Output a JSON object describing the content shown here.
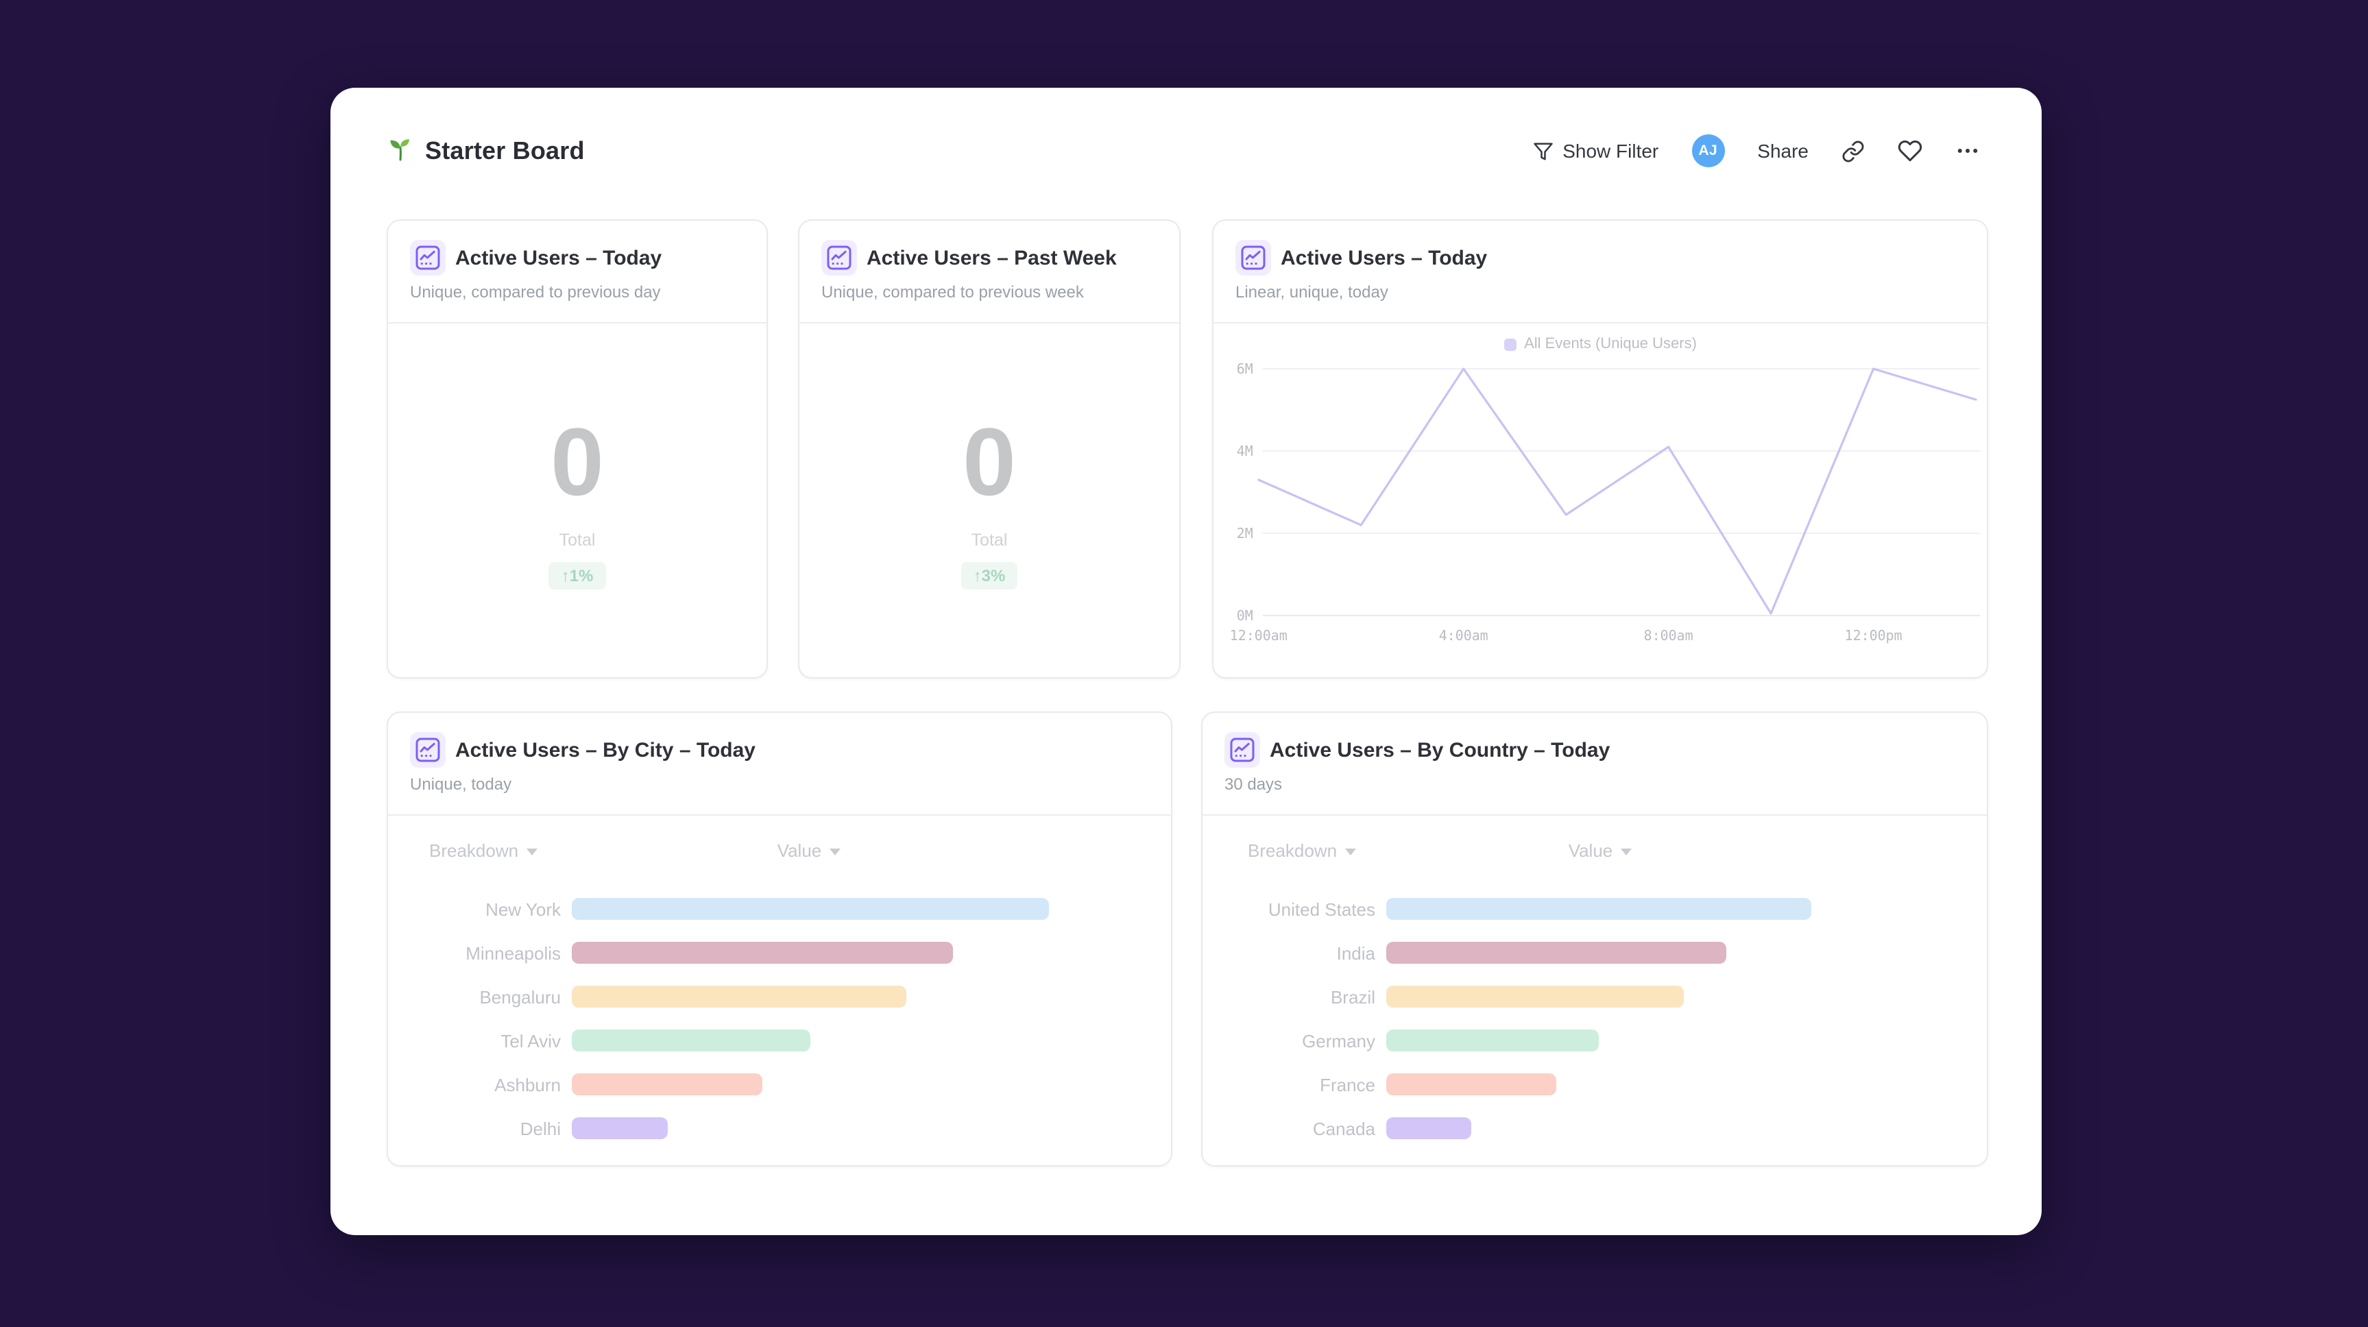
{
  "theme": {
    "page_bg": "#221340",
    "board_bg": "#ffffff",
    "accent_purple": "#7d5ef8",
    "icon_bg": "#f1edfe",
    "avatar_bg": "#58aaf6",
    "positive_green": "#a6d7c0",
    "positive_green_bg": "#eef7f2",
    "line_color": "#c9c1f3",
    "grid_color": "#f0f0f4"
  },
  "header": {
    "title": "Starter Board"
  },
  "toolbar": {
    "show_filter_label": "Show Filter",
    "avatar_initials": "AJ",
    "share_label": "Share",
    "icons": [
      "filter-icon",
      "link-icon",
      "heart-icon",
      "ellipsis-icon"
    ]
  },
  "cards": [
    {
      "title": "Active Users – Today",
      "subtitle": "Unique, compared to previous day",
      "type": "kpi",
      "value": "0",
      "value_label": "Total",
      "delta": "↑1%"
    },
    {
      "title": "Active Users – Past Week",
      "subtitle": "Unique, compared to previous week",
      "type": "kpi",
      "value": "0",
      "value_label": "Total",
      "delta": "↑3%"
    },
    {
      "title": "Active Users – Today",
      "subtitle": "Linear, unique, today",
      "type": "line",
      "chart_data": {
        "type": "line",
        "legend_label": "All Events (Unique Users)",
        "legend_position": "top",
        "x": [
          "12:00am",
          "2:00am",
          "4:00am",
          "6:00am",
          "8:00am",
          "10:00am",
          "12:00pm",
          "2:00pm"
        ],
        "x_tick_indices": [
          0,
          2,
          4,
          6
        ],
        "x_tick_labels": [
          "12:00am",
          "4:00am",
          "8:00am",
          "12:00pm"
        ],
        "values": [
          3300000,
          2200000,
          6000000,
          2450000,
          4100000,
          50000,
          6000000,
          5250000
        ],
        "y_ticks": [
          {
            "label": "0M",
            "value": 0
          },
          {
            "label": "2M",
            "value": 2000000
          },
          {
            "label": "4M",
            "value": 4000000
          },
          {
            "label": "6M",
            "value": 6000000
          }
        ],
        "ylim": [
          0,
          6000000
        ],
        "grid": true
      }
    },
    {
      "title": "Active Users – By City – Today",
      "subtitle": "Unique, today",
      "type": "breakdown",
      "columns": [
        "Breakdown",
        "Value"
      ],
      "chart_data": {
        "type": "bar",
        "orientation": "horizontal",
        "categories": [
          "New York",
          "Minneapolis",
          "Bengaluru",
          "Tel Aviv",
          "Ashburn",
          "Delhi"
        ],
        "values_relative": [
          1.0,
          0.8,
          0.7,
          0.5,
          0.4,
          0.2
        ],
        "bar_colors": [
          "#d2e7f7",
          "#dcb4c2",
          "#fae5bf",
          "#cdeedd",
          "#fcd0c6",
          "#d3c5f8"
        ]
      }
    },
    {
      "title": "Active Users – By Country – Today",
      "subtitle": "30 days",
      "type": "breakdown",
      "columns": [
        "Breakdown",
        "Value"
      ],
      "chart_data": {
        "type": "bar",
        "orientation": "horizontal",
        "categories": [
          "United States",
          "India",
          "Brazil",
          "Germany",
          "France",
          "Canada"
        ],
        "values_relative": [
          1.0,
          0.8,
          0.7,
          0.5,
          0.4,
          0.2
        ],
        "bar_colors": [
          "#d2e7f7",
          "#dcb4c2",
          "#fae5bf",
          "#cdeedd",
          "#fcd0c6",
          "#d3c5f8"
        ]
      }
    }
  ]
}
